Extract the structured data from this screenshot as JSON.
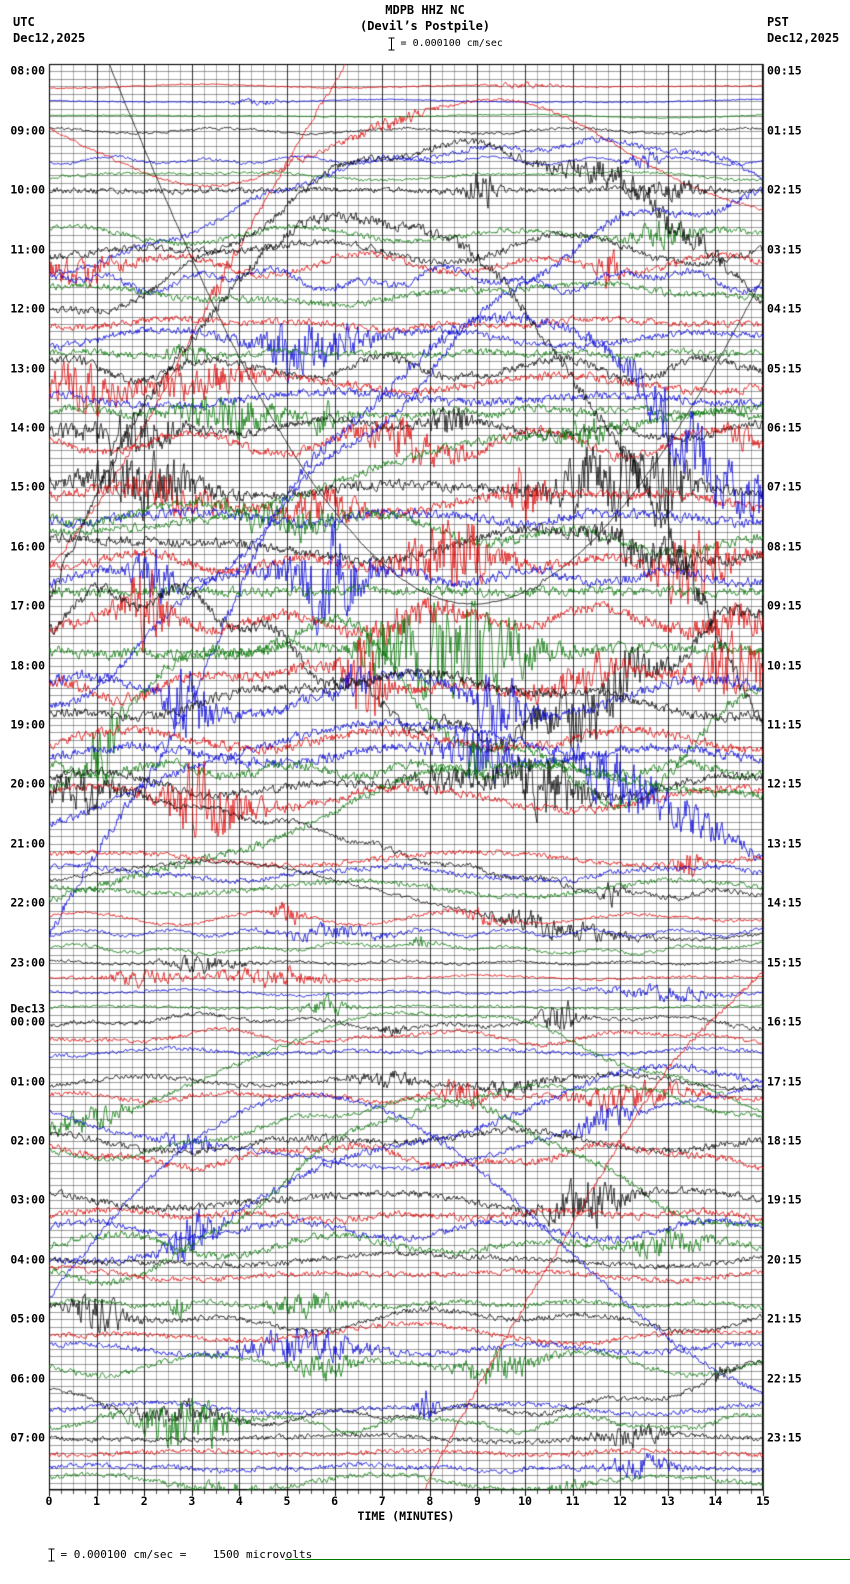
{
  "header": {
    "station": "MDPB HHZ NC",
    "location": "(Devil’s Postpile)",
    "scale_label": "= 0.000100 cm/sec",
    "utc": {
      "tz": "UTC",
      "date": "Dec12,2025"
    },
    "pst": {
      "tz": "PST",
      "date": "Dec12,2025"
    }
  },
  "footer": {
    "calibration": "= 0.000100 cm/sec =    1500 microvolts"
  },
  "x_axis": {
    "label": "TIME (MINUTES)"
  },
  "x_ticks": [
    "0",
    "1",
    "2",
    "3",
    "4",
    "5",
    "6",
    "7",
    "8",
    "9",
    "10",
    "11",
    "12",
    "13",
    "14",
    "15"
  ],
  "left_time_labels": [
    "08:00",
    "09:00",
    "10:00",
    "11:00",
    "12:00",
    "13:00",
    "14:00",
    "15:00",
    "16:00",
    "17:00",
    "18:00",
    "19:00",
    "20:00",
    "21:00",
    "22:00",
    "23:00",
    "00:00",
    "01:00",
    "02:00",
    "03:00",
    "04:00",
    "05:00",
    "06:00",
    "07:00"
  ],
  "date_break": {
    "index": 16,
    "label": "Dec13"
  },
  "right_time_labels": [
    "00:15",
    "01:15",
    "02:15",
    "03:15",
    "04:15",
    "05:15",
    "06:15",
    "07:15",
    "08:15",
    "09:15",
    "10:15",
    "11:15",
    "12:15",
    "13:15",
    "14:15",
    "15:15",
    "16:15",
    "17:15",
    "18:15",
    "19:15",
    "20:15",
    "21:15",
    "22:15",
    "23:15"
  ],
  "chart_data": {
    "type": "line",
    "subtype": "seismogram-helicorder",
    "title": "MDPB HHZ NC (Devil’s Postpile)",
    "station": "MDPB",
    "channel": "HHZ",
    "network": "NC",
    "station_name": "Devil’s Postpile",
    "start_utc": "Dec12,2025 08:00 UTC",
    "end_utc": "Dec13,2025 08:00 UTC",
    "start_pst": "Dec12,2025 00:15 PST",
    "xlabel": "TIME (MINUTES)",
    "x_range": [
      0,
      15
    ],
    "minutes_per_row": 15,
    "rows": 96,
    "rows_per_hour": 4,
    "trace_colors": [
      "#000000",
      "#e00000",
      "#0000dd",
      "#007700"
    ],
    "scale_cm_per_sec": 0.0001,
    "calibration_microvolts": 1500,
    "grid": {
      "on": true,
      "minor_x_per_minute": 4,
      "minor_y_per_row": 2
    },
    "legend": "trace color cycles black, red, blue, green every 15-minute line",
    "noise_seed": 777001,
    "hour_activity": [
      0.4,
      1,
      2,
      2.5,
      2.5,
      3,
      3,
      3.5,
      3.5,
      4,
      4,
      3.5,
      3,
      2,
      1.2,
      1,
      1.5,
      1.8,
      2.5,
      2.5,
      2,
      2,
      1.8,
      1.8
    ]
  }
}
